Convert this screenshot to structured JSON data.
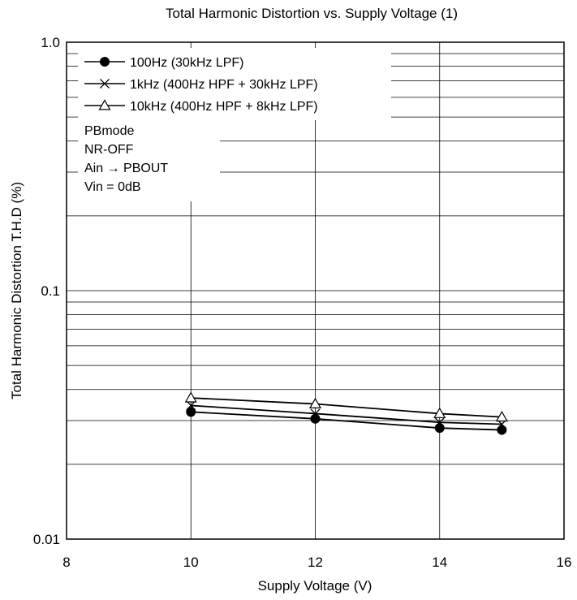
{
  "chart_data": {
    "type": "line",
    "title": "Total Harmonic Distortion vs. Supply Voltage (1)",
    "xlabel": "Supply Voltage  (V)",
    "ylabel": "Total Harmonic Distortion  T.H.D  (%)",
    "x_scale": "linear",
    "y_scale": "log",
    "xlim": [
      8,
      16
    ],
    "ylim": [
      0.01,
      1.0
    ],
    "grid": true,
    "x_ticks": [
      "8",
      "10",
      "12",
      "14",
      "16"
    ],
    "y_ticks": [
      "0.01",
      "0.1",
      "1.0"
    ],
    "legend_position": "top-left",
    "series": [
      {
        "name": "100Hz (30kHz LPF)",
        "marker": "filled-circle",
        "x": [
          10,
          12,
          14,
          15
        ],
        "y": [
          0.0325,
          0.0305,
          0.028,
          0.0275
        ]
      },
      {
        "name": "1kHz (400Hz HPF + 30kHz LPF)",
        "marker": "cross",
        "x": [
          10,
          12,
          14,
          15
        ],
        "y": [
          0.0345,
          0.032,
          0.0295,
          0.029
        ]
      },
      {
        "name": "10kHz (400Hz HPF + 8kHz LPF)",
        "marker": "open-triangle",
        "x": [
          10,
          12,
          14,
          15
        ],
        "y": [
          0.037,
          0.035,
          0.032,
          0.031
        ]
      }
    ],
    "conditions": [
      "PBmode",
      "NR-OFF",
      "Ain → PBOUT",
      "Vin = 0dB"
    ]
  }
}
